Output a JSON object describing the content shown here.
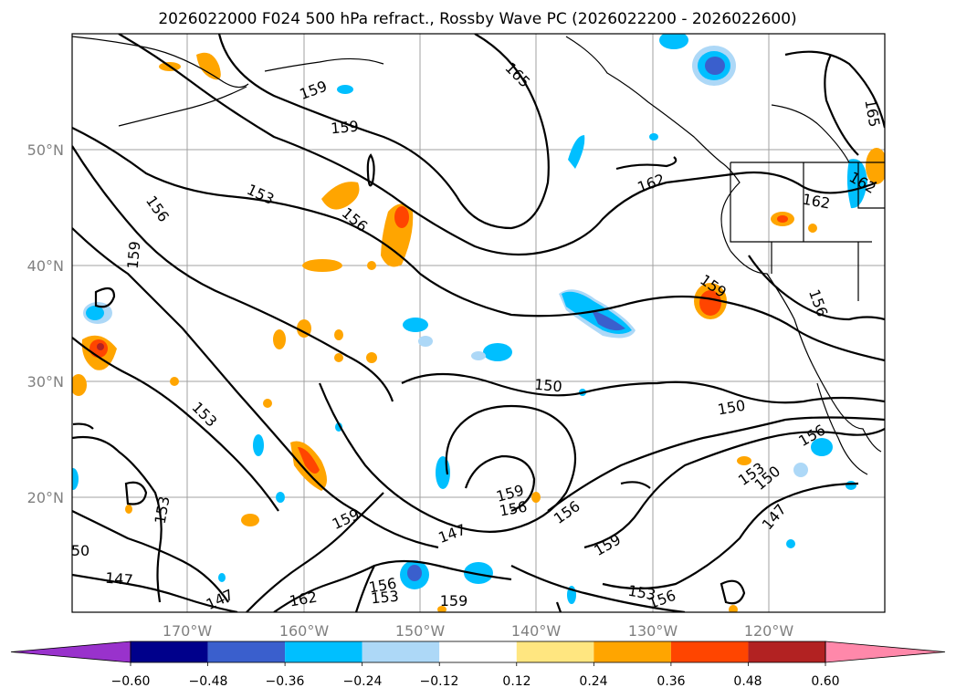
{
  "title": "2026022000 F024 500 hPa refract., Rossby Wave PC (2026022200 - 2026022600)",
  "lat_labels": [
    "50°N",
    "40°N",
    "30°N",
    "20°N"
  ],
  "lon_labels": [
    "170°W",
    "160°W",
    "150°W",
    "140°W",
    "130°W",
    "120°W"
  ],
  "contour_labels": [
    "165",
    "159",
    "159",
    "153",
    "156",
    "156",
    "159",
    "162",
    "162",
    "162",
    "165",
    "159",
    "156",
    "150",
    "150",
    "153",
    "156",
    "153",
    "150",
    "159",
    "156",
    "153",
    "147",
    "156",
    "159",
    "147",
    "159",
    "147",
    "162",
    "156",
    "153",
    "159",
    "153",
    "156",
    "147",
    "50"
  ],
  "colorbar": {
    "tick_labels": [
      "−0.60",
      "−0.48",
      "−0.36",
      "−0.24",
      "−0.12",
      "0.12",
      "0.24",
      "0.36",
      "0.48",
      "0.60"
    ],
    "colors": [
      "#9932cc",
      "#00008b",
      "#3a5fcd",
      "#00bfff",
      "#add8f7",
      "#ffffff",
      "#ffe680",
      "#ffa500",
      "#ff4500",
      "#b22222",
      "#ff88aa"
    ]
  }
}
